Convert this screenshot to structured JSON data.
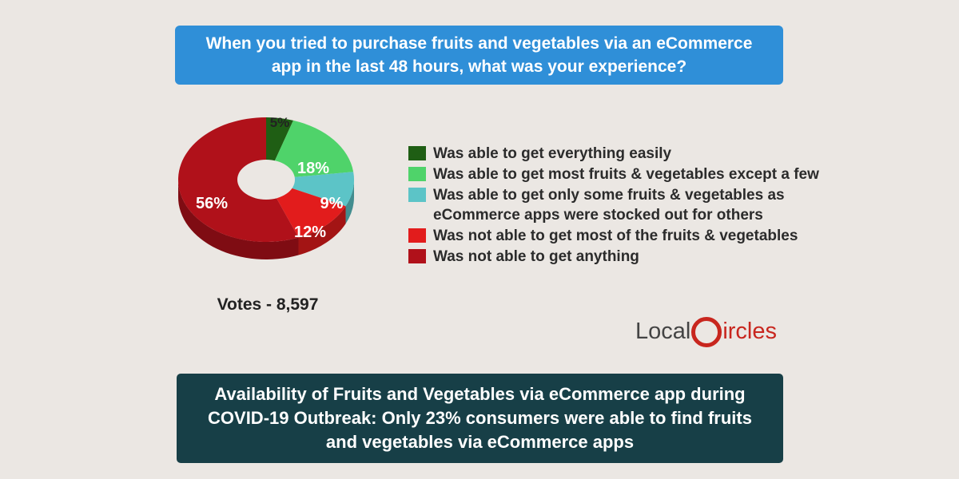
{
  "question": "When you tried to purchase fruits and vegetables via an eCommerce app in the last 48 hours, what was your experience?",
  "votes": "Votes - 8,597",
  "logo": {
    "part1": "Local",
    "part2": "ircles"
  },
  "conclusion": "Availability of Fruits and Vegetables via eCommerce app during COVID-19 Outbreak: Only 23% consumers were able to find fruits and vegetables via eCommerce apps",
  "chart_data": {
    "type": "pie",
    "donut": true,
    "title": "When you tried to purchase fruits and vegetables via an eCommerce app in the last 48 hours, what was your experience?",
    "legend_position": "right",
    "slices": [
      {
        "label": "Was able to get everything easily",
        "value": 5,
        "display": "5%",
        "color": "#1f5e14"
      },
      {
        "label": "Was able to get most fruits & vegetables except a few",
        "value": 18,
        "display": "18%",
        "color": "#4fd36a"
      },
      {
        "label": "Was able to get only some fruits & vegetables as eCommerce apps were stocked out for others",
        "value": 9,
        "display": "9%",
        "color": "#5cc4c7"
      },
      {
        "label": "Was not able to get most of the fruits & vegetables",
        "value": 12,
        "display": "12%",
        "color": "#e21c1c"
      },
      {
        "label": "Was not able to get anything",
        "value": 56,
        "display": "56%",
        "color": "#b0111a"
      }
    ]
  }
}
